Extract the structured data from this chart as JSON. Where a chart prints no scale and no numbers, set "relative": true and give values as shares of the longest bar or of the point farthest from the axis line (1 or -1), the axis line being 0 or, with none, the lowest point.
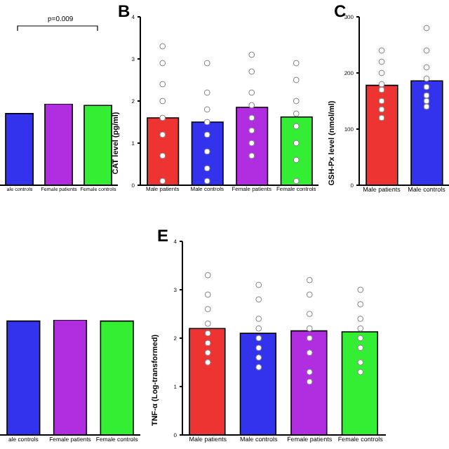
{
  "chart_data": [
    {
      "type": "bar",
      "relative": true,
      "tick_labels": "x",
      "annotations": [
        "p=0.009"
      ],
      "categories": [
        "ale controls",
        "Female patients",
        "Female controls"
      ],
      "series": [
        {
          "colors": [
            "#3333ee",
            "#b02ee0",
            "#33ee33"
          ],
          "values": [
            0.88,
            1,
            0.98
          ]
        }
      ]
    },
    {
      "type": "bar",
      "title": "B",
      "ylabel": "CAT level (pg/ml)",
      "marker": "circle",
      "ylim": [
        0,
        4
      ],
      "yticks": [
        0,
        1,
        2,
        3,
        4
      ],
      "categories": [
        "Male patients",
        "Male controls",
        "Female patients",
        "Female controls"
      ],
      "series": [
        {
          "colors": [
            "#ee3333",
            "#3333ee",
            "#b02ee0",
            "#33ee33"
          ],
          "values": [
            1.6,
            1.5,
            1.85,
            1.62
          ]
        },
        {
          "type": "scatter",
          "color": "#808080",
          "x": [
            "Male patients",
            "Male patients",
            "Male patients",
            "Male patients",
            "Male patients",
            "Male patients",
            "Male patients",
            "Male patients",
            "Male controls",
            "Male controls",
            "Male controls",
            "Male controls",
            "Male controls",
            "Male controls",
            "Male controls",
            "Male controls",
            "Female patients",
            "Female patients",
            "Female patients",
            "Female patients",
            "Female patients",
            "Female patients",
            "Female patients",
            "Female patients",
            "Female controls",
            "Female controls",
            "Female controls",
            "Female controls",
            "Female controls",
            "Female controls",
            "Female controls",
            "Female controls"
          ],
          "values": [
            3.3,
            2.9,
            2.4,
            2.0,
            1.6,
            1.2,
            0.7,
            0.1,
            2.9,
            2.2,
            1.8,
            1.5,
            1.2,
            0.8,
            0.4,
            0.1,
            3.1,
            2.7,
            2.2,
            1.9,
            1.6,
            1.3,
            1.0,
            0.7,
            2.9,
            2.5,
            2.0,
            1.7,
            1.4,
            1.0,
            0.6,
            0.1
          ]
        }
      ]
    },
    {
      "type": "bar",
      "title": "C",
      "ylabel": "GSH-Px level (nmol/ml)",
      "marker": "circle",
      "ylim": [
        0,
        300
      ],
      "yticks": [
        0,
        100,
        200,
        300
      ],
      "categories": [
        "Male patients",
        "Male controls"
      ],
      "series": [
        {
          "colors": [
            "#ee3333",
            "#3333ee"
          ],
          "values": [
            178,
            186
          ]
        },
        {
          "type": "scatter",
          "color": "#808080",
          "x": [
            "Male patients",
            "Male patients",
            "Male patients",
            "Male patients",
            "Male patients",
            "Male patients",
            "Male patients",
            "Male patients",
            "Male controls",
            "Male controls",
            "Male controls",
            "Male controls",
            "Male controls",
            "Male controls",
            "Male controls",
            "Male controls"
          ],
          "values": [
            240,
            220,
            200,
            180,
            170,
            150,
            135,
            120,
            280,
            240,
            210,
            190,
            175,
            160,
            150,
            140
          ]
        }
      ]
    },
    {
      "type": "bar",
      "relative": true,
      "tick_labels": "x",
      "categories": [
        "ale controls",
        "Female patients",
        "Female controls"
      ],
      "series": [
        {
          "colors": [
            "#3333ee",
            "#b02ee0",
            "#33ee33"
          ],
          "values": [
            0.99,
            1,
            0.99
          ]
        }
      ]
    },
    {
      "type": "bar",
      "title": "E",
      "ylabel": "TNF-α (Log-transformed)",
      "marker": "circle",
      "ylim": [
        0,
        4
      ],
      "yticks": [
        0,
        1,
        2,
        3,
        4
      ],
      "categories": [
        "Male patients",
        "Male controls",
        "Female patients",
        "Female controls"
      ],
      "series": [
        {
          "colors": [
            "#ee3333",
            "#3333ee",
            "#b02ee0",
            "#33ee33"
          ],
          "values": [
            2.2,
            2.1,
            2.15,
            2.13
          ]
        },
        {
          "type": "scatter",
          "color": "#808080",
          "x": [
            "Male patients",
            "Male patients",
            "Male patients",
            "Male patients",
            "Male patients",
            "Male patients",
            "Male patients",
            "Male patients",
            "Male controls",
            "Male controls",
            "Male controls",
            "Male controls",
            "Male controls",
            "Male controls",
            "Male controls",
            "Male controls",
            "Female patients",
            "Female patients",
            "Female patients",
            "Female patients",
            "Female patients",
            "Female patients",
            "Female patients",
            "Female patients",
            "Female controls",
            "Female controls",
            "Female controls",
            "Female controls",
            "Female controls",
            "Female controls",
            "Female controls",
            "Female controls"
          ],
          "values": [
            3.3,
            2.9,
            2.6,
            2.3,
            2.1,
            1.9,
            1.7,
            1.5,
            3.1,
            2.8,
            2.4,
            2.2,
            2.0,
            1.8,
            1.6,
            1.4,
            3.2,
            2.9,
            2.5,
            2.2,
            2.0,
            1.7,
            1.3,
            1.1,
            3.0,
            2.7,
            2.4,
            2.2,
            2.0,
            1.8,
            1.5,
            1.3
          ]
        }
      ]
    }
  ]
}
